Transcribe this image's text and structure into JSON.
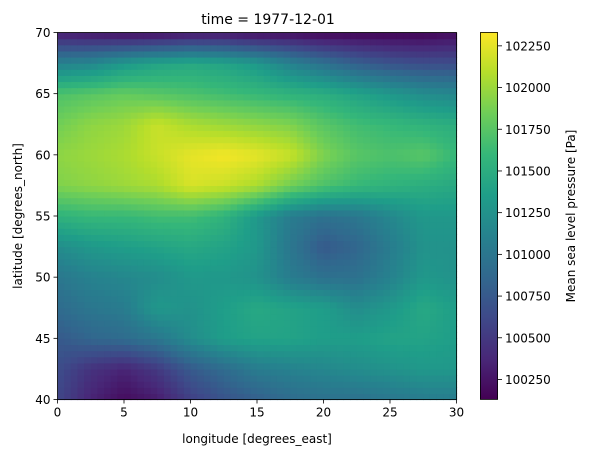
{
  "chart_data": {
    "type": "heatmap",
    "title": "time = 1977-12-01",
    "xlabel": "longitude [degrees_east]",
    "ylabel": "latitude [degrees_north]",
    "xlim": [
      0,
      30
    ],
    "ylim": [
      40,
      70
    ],
    "x_ticks": [
      0,
      5,
      10,
      15,
      20,
      25,
      30
    ],
    "y_ticks": [
      40,
      45,
      50,
      55,
      60,
      65,
      70
    ],
    "colorbar": {
      "label": "Mean sea level pressure [Pa]",
      "min": 100130,
      "max": 102330,
      "ticks": [
        100250,
        100500,
        100750,
        101000,
        101250,
        101500,
        101750,
        102000,
        102250
      ],
      "colormap": "viridis",
      "colormap_stops": [
        "#440154",
        "#482878",
        "#3e4989",
        "#31688e",
        "#26828e",
        "#1f9e89",
        "#35b779",
        "#6ece58",
        "#b5de2b",
        "#fde725"
      ]
    },
    "grid_lat": [
      40,
      42.5,
      45,
      47.5,
      50,
      52.5,
      55,
      57.5,
      60,
      62.5,
      65,
      67.5,
      70
    ],
    "grid_lon": [
      0,
      2.5,
      5,
      7.5,
      10,
      12.5,
      15,
      17.5,
      20,
      22.5,
      25,
      27.5,
      30
    ],
    "values_by_lat_row": [
      [
        100600,
        100350,
        100200,
        100300,
        100550,
        100700,
        100800,
        100900,
        100950,
        100950,
        101000,
        101050,
        101050
      ],
      [
        100650,
        100450,
        100350,
        100500,
        100750,
        100900,
        101050,
        101100,
        101150,
        101200,
        101250,
        101300,
        101300
      ],
      [
        100750,
        100850,
        100900,
        101000,
        101200,
        101350,
        101400,
        101400,
        101350,
        101350,
        101400,
        101400,
        101350
      ],
      [
        100900,
        101000,
        101050,
        101300,
        101250,
        101350,
        101450,
        101400,
        101350,
        101200,
        101300,
        101450,
        101350
      ],
      [
        101000,
        101100,
        101150,
        101200,
        101300,
        101300,
        101250,
        101050,
        100950,
        100950,
        101100,
        101300,
        101250
      ],
      [
        101200,
        101300,
        101350,
        101400,
        101450,
        101400,
        101300,
        101000,
        100750,
        100850,
        101050,
        101250,
        101250
      ],
      [
        101550,
        101600,
        101600,
        101650,
        101650,
        101550,
        101300,
        101050,
        100950,
        101000,
        101150,
        101300,
        101300
      ],
      [
        101900,
        101950,
        102000,
        102050,
        102200,
        102150,
        102050,
        101850,
        101700,
        101600,
        101550,
        101500,
        101450
      ],
      [
        101950,
        102000,
        102050,
        102150,
        102250,
        102300,
        102250,
        102150,
        101900,
        101750,
        101700,
        101750,
        101600
      ],
      [
        101850,
        101950,
        102000,
        102150,
        102050,
        102000,
        101950,
        101900,
        101750,
        101650,
        101600,
        101550,
        101500
      ],
      [
        101700,
        101750,
        101800,
        101750,
        101700,
        101650,
        101600,
        101550,
        101500,
        101400,
        101300,
        101200,
        101150
      ],
      [
        101100,
        101150,
        101300,
        101400,
        101450,
        101400,
        101300,
        101100,
        100950,
        100800,
        100700,
        100650,
        100650
      ],
      [
        100300,
        100250,
        100200,
        100200,
        100250,
        100250,
        100200,
        100200,
        100150,
        100150,
        100150,
        100150,
        100200
      ]
    ]
  }
}
